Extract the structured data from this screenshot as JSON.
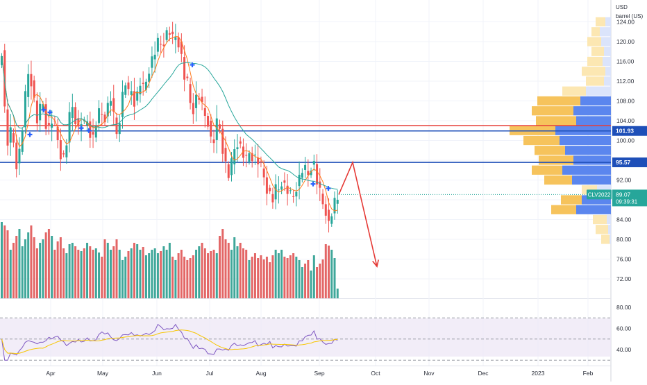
{
  "chart_data": {
    "type": "candlestick",
    "symbol": "CLV2022",
    "currency": "USD",
    "unit": "barrel (US)",
    "price_axis": {
      "ticks": [
        "124.00",
        "120.00",
        "116.00",
        "112.00",
        "108.00",
        "104.00",
        "100.00",
        "96.00",
        "92.00",
        "88.00",
        "84.00",
        "80.00",
        "76.00",
        "72.00"
      ],
      "range": [
        67,
        126
      ]
    },
    "rsi_axis": {
      "ticks": [
        "80.00",
        "60.00",
        "40.00"
      ],
      "range": [
        27,
        87
      ],
      "band": [
        30,
        70
      ],
      "midline": 50
    },
    "x_ticks": [
      "Apr",
      "May",
      "Jun",
      "Jul",
      "Aug",
      "Sep",
      "Oct",
      "Nov",
      "Dec",
      "2023",
      "Feb"
    ],
    "horizontal_levels": [
      {
        "value": 103.0,
        "label": "",
        "color": "#e53935"
      },
      {
        "value": 101.93,
        "label": "101.93",
        "color": "#1e4fb8"
      },
      {
        "value": 95.57,
        "label": "95.57",
        "color": "#1e4fb8"
      }
    ],
    "last_price": {
      "value": 89.07,
      "label": "89.07",
      "symbol": "CLV2022",
      "countdown": "09:39:31",
      "color": "#26a69a"
    },
    "price_path": [
      [
        0,
        113.0
      ],
      [
        4,
        122.0
      ],
      [
        8,
        110.0
      ],
      [
        12,
        100.0
      ],
      [
        16,
        99.0
      ],
      [
        20,
        104.0
      ],
      [
        24,
        96.0
      ],
      [
        28,
        95.0
      ],
      [
        32,
        99.0
      ],
      [
        36,
        104.0
      ],
      [
        40,
        110.0
      ],
      [
        44,
        114.0
      ],
      [
        48,
        112.0
      ],
      [
        52,
        108.0
      ],
      [
        56,
        104.0
      ],
      [
        60,
        106.0
      ],
      [
        64,
        108.0
      ],
      [
        68,
        104.0
      ],
      [
        72,
        102.0
      ],
      [
        76,
        104.0
      ],
      [
        80,
        104.0
      ],
      [
        84,
        101.0
      ],
      [
        88,
        99.0
      ],
      [
        92,
        96.0
      ],
      [
        96,
        97.0
      ],
      [
        100,
        101.0
      ],
      [
        104,
        106.0
      ],
      [
        108,
        107.0
      ],
      [
        112,
        104.0
      ],
      [
        116,
        102.0
      ],
      [
        120,
        104.0
      ],
      [
        124,
        103.0
      ],
      [
        128,
        104.0
      ],
      [
        132,
        102.0
      ],
      [
        136,
        100.0
      ],
      [
        140,
        103.0
      ],
      [
        144,
        105.0
      ],
      [
        148,
        106.0
      ],
      [
        152,
        104.0
      ],
      [
        156,
        106.0
      ],
      [
        160,
        108.0
      ],
      [
        164,
        109.0
      ],
      [
        168,
        102.0
      ],
      [
        172,
        101.0
      ],
      [
        176,
        106.0
      ],
      [
        180,
        110.0
      ],
      [
        184,
        112.0
      ],
      [
        188,
        109.0
      ],
      [
        192,
        110.0
      ],
      [
        196,
        108.0
      ],
      [
        200,
        109.0
      ],
      [
        204,
        112.0
      ],
      [
        208,
        110.0
      ],
      [
        212,
        111.0
      ],
      [
        216,
        114.0
      ],
      [
        220,
        116.0
      ],
      [
        224,
        117.0
      ],
      [
        228,
        119.0
      ],
      [
        232,
        120.0
      ],
      [
        236,
        119.0
      ],
      [
        240,
        121.0
      ],
      [
        244,
        122.0
      ],
      [
        248,
        122.0
      ],
      [
        252,
        120.0
      ],
      [
        256,
        121.0
      ],
      [
        260,
        120.0
      ],
      [
        264,
        117.0
      ],
      [
        268,
        113.0
      ],
      [
        272,
        112.0
      ],
      [
        276,
        108.0
      ],
      [
        280,
        106.0
      ],
      [
        284,
        108.0
      ],
      [
        288,
        110.0
      ],
      [
        292,
        107.0
      ],
      [
        296,
        106.0
      ],
      [
        300,
        104.0
      ],
      [
        304,
        104.0
      ],
      [
        308,
        98.0
      ],
      [
        312,
        101.0
      ],
      [
        316,
        104.0
      ],
      [
        320,
        102.0
      ],
      [
        324,
        98.0
      ],
      [
        328,
        95.0
      ],
      [
        332,
        93.0
      ],
      [
        336,
        95.0
      ],
      [
        340,
        98.0
      ],
      [
        344,
        100.0
      ],
      [
        348,
        99.0
      ],
      [
        352,
        98.0
      ],
      [
        356,
        95.0
      ],
      [
        360,
        97.0
      ],
      [
        364,
        98.0
      ],
      [
        368,
        96.0
      ],
      [
        372,
        97.0
      ],
      [
        376,
        95.0
      ],
      [
        380,
        94.0
      ],
      [
        384,
        92.0
      ],
      [
        388,
        90.0
      ],
      [
        392,
        89.0
      ],
      [
        396,
        88.0
      ],
      [
        400,
        90.0
      ],
      [
        404,
        90.0
      ],
      [
        408,
        92.0
      ],
      [
        412,
        91.0
      ],
      [
        416,
        90.0
      ],
      [
        420,
        89.0
      ],
      [
        424,
        88.0
      ],
      [
        428,
        90.0
      ],
      [
        432,
        92.0
      ],
      [
        436,
        93.0
      ],
      [
        440,
        95.0
      ],
      [
        444,
        93.0
      ],
      [
        448,
        93.0
      ],
      [
        452,
        96.0
      ],
      [
        456,
        95.0
      ],
      [
        460,
        91.0
      ],
      [
        464,
        89.0
      ],
      [
        468,
        87.0
      ],
      [
        472,
        86.0
      ],
      [
        476,
        83.0
      ],
      [
        480,
        85.0
      ],
      [
        484,
        87.0
      ],
      [
        488,
        88.0
      ]
    ],
    "overlay_lines": [
      {
        "name": "",
        "color": "#ff7a1a",
        "period": 5
      },
      {
        "name": "",
        "color": "#26a69a",
        "period": 20
      }
    ],
    "forecast_path": {
      "color": "#e53935",
      "points": [
        [
          488,
          89.07
        ],
        [
          508,
          95.57
        ],
        [
          543,
          74.5
        ]
      ]
    },
    "volume_profile": {
      "rows": [
        [
          124,
          14,
          8
        ],
        [
          122,
          12,
          16
        ],
        [
          120,
          20,
          14
        ],
        [
          118,
          18,
          10
        ],
        [
          116,
          22,
          12
        ],
        [
          114,
          34,
          8
        ],
        [
          112,
          26,
          10
        ],
        [
          110,
          34,
          36
        ],
        [
          108,
          62,
          44
        ],
        [
          106,
          60,
          54
        ],
        [
          104,
          58,
          50
        ],
        [
          102,
          66,
          80
        ],
        [
          100,
          52,
          74
        ],
        [
          98,
          44,
          66
        ],
        [
          96,
          50,
          54
        ],
        [
          94,
          44,
          70
        ],
        [
          92,
          40,
          56
        ],
        [
          90,
          22,
          20
        ],
        [
          88,
          30,
          42
        ],
        [
          86,
          36,
          50
        ],
        [
          84,
          20,
          6
        ],
        [
          82,
          18,
          4
        ],
        [
          80,
          12,
          2
        ]
      ],
      "colors": {
        "up_light": "#fce7b2",
        "up": "#f6c35c",
        "down_light": "#dbe4fb",
        "down": "#5b86ee"
      }
    },
    "markers": [
      {
        "x": 43,
        "price": 101.2
      },
      {
        "x": 63,
        "price": 106.2
      },
      {
        "x": 72,
        "price": 105.7
      },
      {
        "x": 117,
        "price": 102.5
      },
      {
        "x": 128,
        "price": 102.0
      },
      {
        "x": 277,
        "price": 115.3
      },
      {
        "x": 451,
        "price": 91.2
      },
      {
        "x": 473,
        "price": 90.3
      }
    ],
    "volume_heights": [
      110,
      105,
      98,
      70,
      80,
      90,
      100,
      75,
      85,
      95,
      105,
      88,
      72,
      80,
      85,
      95,
      100,
      90,
      70,
      82,
      88,
      72,
      65,
      78,
      80,
      75,
      70,
      68,
      72,
      80,
      75,
      70,
      72,
      66,
      60,
      85,
      80,
      70,
      75,
      85,
      70,
      55,
      60,
      68,
      72,
      80,
      78,
      70,
      74,
      62,
      65,
      70,
      72,
      65,
      68,
      75,
      70,
      80,
      60,
      55,
      65,
      70,
      60,
      55,
      58,
      62,
      70,
      75,
      80,
      72,
      65,
      68,
      70,
      65,
      90,
      100,
      85,
      80,
      70,
      88,
      75,
      80,
      72,
      70,
      55,
      60,
      65,
      58,
      62,
      56,
      60,
      52,
      62,
      70,
      65,
      70,
      60,
      58,
      62,
      65,
      60,
      55,
      45,
      50,
      55,
      40,
      62,
      45,
      50,
      56,
      78,
      76,
      70,
      58,
      14
    ],
    "volume_colors": [
      "#e36666",
      "#3fa79a"
    ]
  }
}
